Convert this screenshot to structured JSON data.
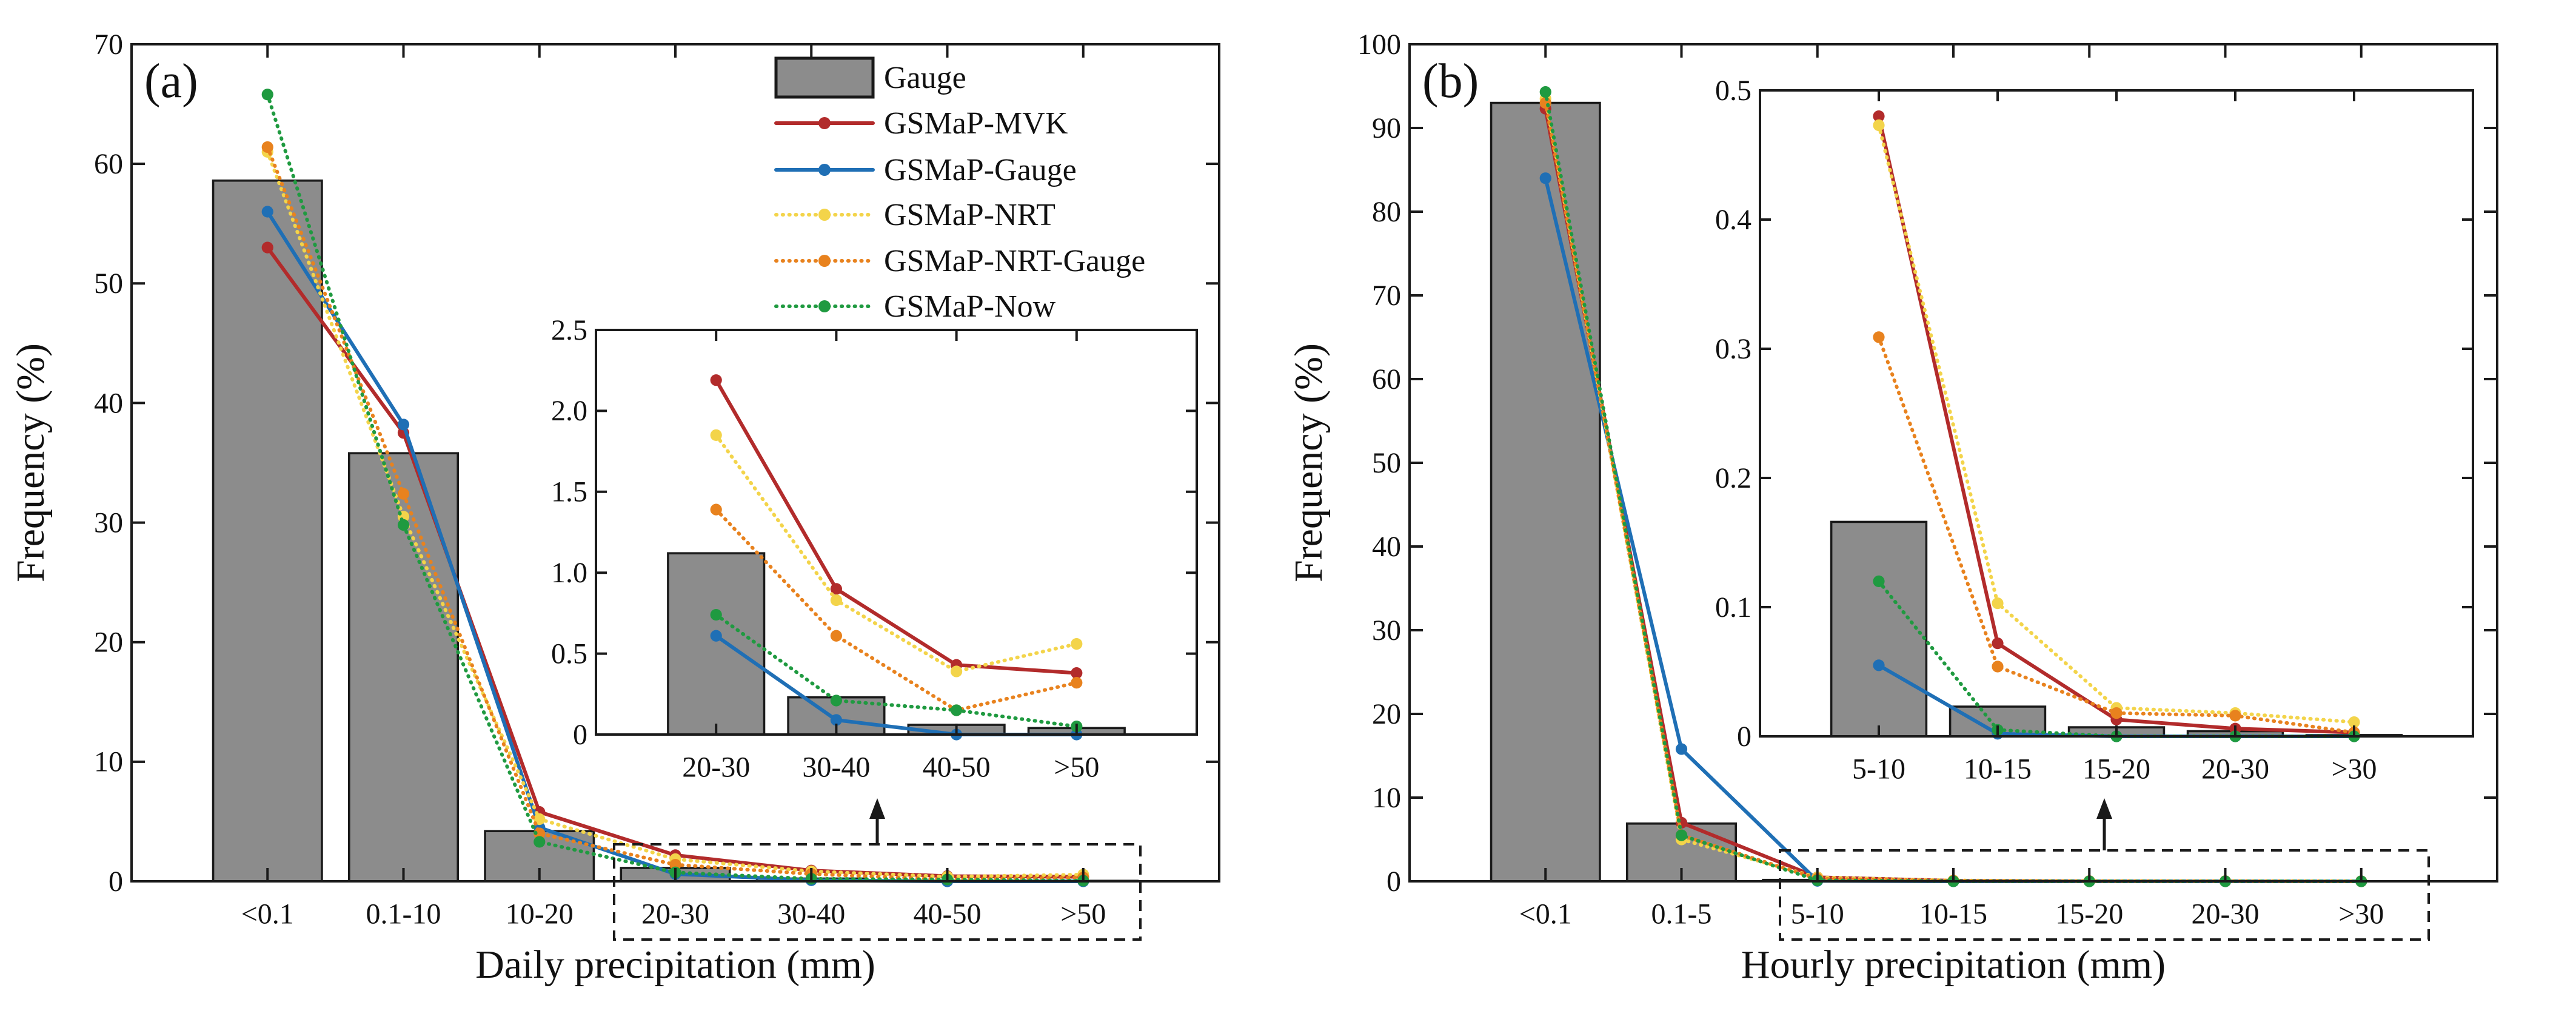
{
  "legend": {
    "items": [
      {
        "name": "Gauge",
        "kind": "bar",
        "color": "#8c8c8c"
      },
      {
        "name": "GSMaP-MVK",
        "kind": "solid",
        "color": "#b22b2b"
      },
      {
        "name": "GSMaP-Gauge",
        "kind": "solid",
        "color": "#1f6fb5"
      },
      {
        "name": "GSMaP-NRT",
        "kind": "dotted",
        "color": "#f3d44a"
      },
      {
        "name": "GSMaP-NRT-Gauge",
        "kind": "dotted",
        "color": "#e8821e"
      },
      {
        "name": "GSMaP-Now",
        "kind": "dotted",
        "color": "#1f9a40"
      }
    ]
  },
  "chart_data": [
    {
      "type": "bar+line",
      "panel_label": "(a)",
      "xlabel": "Daily precipitation (mm)",
      "ylabel": "Frequency (%)",
      "categories": [
        "<0.1",
        "0.1-10",
        "10-20",
        "20-30",
        "30-40",
        "40-50",
        ">50"
      ],
      "ylim": [
        0,
        70
      ],
      "yticks": [
        0,
        10,
        20,
        30,
        40,
        50,
        60,
        70
      ],
      "ytick_labels": [
        "0",
        "10",
        "20",
        "30",
        "40",
        "50",
        "60",
        "70"
      ],
      "bar": {
        "name": "Gauge",
        "values": [
          58.6,
          35.8,
          4.2,
          1.12,
          0.23,
          0.06,
          0.04
        ]
      },
      "series": [
        {
          "name": "GSMaP-MVK",
          "values": [
            53.0,
            37.5,
            5.8,
            2.19,
            0.9,
            0.43,
            0.38
          ]
        },
        {
          "name": "GSMaP-Gauge",
          "values": [
            56.0,
            38.2,
            4.5,
            0.61,
            0.09,
            0.0,
            0.0
          ]
        },
        {
          "name": "GSMaP-NRT",
          "values": [
            61.0,
            30.5,
            5.2,
            1.85,
            0.83,
            0.39,
            0.56
          ]
        },
        {
          "name": "GSMaP-NRT-Gauge",
          "values": [
            61.4,
            32.4,
            4.0,
            1.39,
            0.61,
            0.15,
            0.32
          ]
        },
        {
          "name": "GSMaP-Now",
          "values": [
            65.8,
            29.8,
            3.3,
            0.74,
            0.21,
            0.15,
            0.05
          ]
        }
      ],
      "inset": {
        "from_index": 3,
        "categories": [
          "20-30",
          "30-40",
          "40-50",
          ">50"
        ],
        "ylim": [
          0,
          2.5
        ],
        "yticks": [
          0,
          0.5,
          1.0,
          1.5,
          2.0,
          2.5
        ],
        "ytick_labels": [
          "0",
          "0.5",
          "1.0",
          "1.5",
          "2.0",
          "2.5"
        ]
      }
    },
    {
      "type": "bar+line",
      "panel_label": "(b)",
      "xlabel": "Hourly precipitation (mm)",
      "ylabel": "Frequency (%)",
      "categories": [
        "<0.1",
        "0.1-5",
        "5-10",
        "10-15",
        "15-20",
        "20-30",
        ">30"
      ],
      "ylim": [
        0,
        100
      ],
      "yticks": [
        0,
        10,
        20,
        30,
        40,
        50,
        60,
        70,
        80,
        90,
        100
      ],
      "ytick_labels": [
        "0",
        "10",
        "20",
        "30",
        "40",
        "50",
        "60",
        "70",
        "80",
        "90",
        "100"
      ],
      "bar": {
        "name": "Gauge",
        "values": [
          93.0,
          6.9,
          0.166,
          0.023,
          0.007,
          0.004,
          0.001
        ]
      },
      "series": [
        {
          "name": "GSMaP-MVK",
          "values": [
            92.3,
            7.0,
            0.48,
            0.072,
            0.013,
            0.006,
            0.003
          ]
        },
        {
          "name": "GSMaP-Gauge",
          "values": [
            84.0,
            15.8,
            0.055,
            0.002,
            0.0,
            0.0,
            0.0
          ]
        },
        {
          "name": "GSMaP-NRT",
          "values": [
            93.5,
            5.0,
            0.473,
            0.103,
            0.022,
            0.018,
            0.011
          ]
        },
        {
          "name": "GSMaP-NRT-Gauge",
          "values": [
            93.0,
            5.5,
            0.309,
            0.054,
            0.018,
            0.016,
            0.003
          ]
        },
        {
          "name": "GSMaP-Now",
          "values": [
            94.3,
            5.5,
            0.12,
            0.005,
            0.0,
            0.0,
            0.0
          ]
        }
      ],
      "inset": {
        "from_index": 2,
        "categories": [
          "5-10",
          "10-15",
          "15-20",
          "20-30",
          ">30"
        ],
        "ylim": [
          0,
          0.5
        ],
        "yticks": [
          0,
          0.1,
          0.2,
          0.3,
          0.4,
          0.5
        ],
        "ytick_labels": [
          "0",
          "0.1",
          "0.2",
          "0.3",
          "0.4",
          "0.5"
        ]
      }
    }
  ]
}
